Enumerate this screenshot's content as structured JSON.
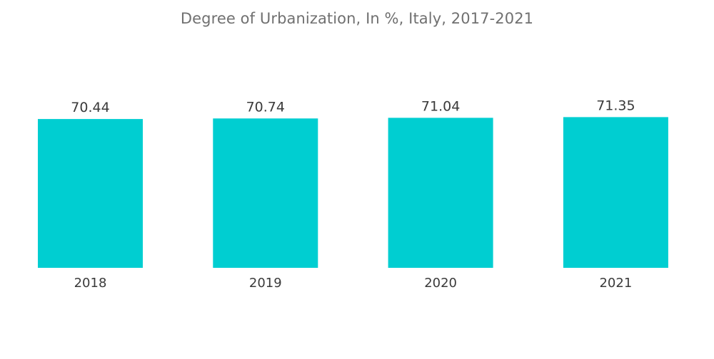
{
  "chart_data": {
    "type": "bar",
    "title": "Degree of Urbanization, In %, Italy, 2017-2021",
    "categories": [
      "2018",
      "2019",
      "2020",
      "2021"
    ],
    "values": [
      70.44,
      70.74,
      71.04,
      71.35
    ],
    "value_labels": [
      "70.44",
      "70.74",
      "71.04",
      "71.35"
    ],
    "xlabel": "",
    "ylabel": "",
    "grid": false,
    "legend": "none",
    "bar_color": "#00CED1"
  }
}
